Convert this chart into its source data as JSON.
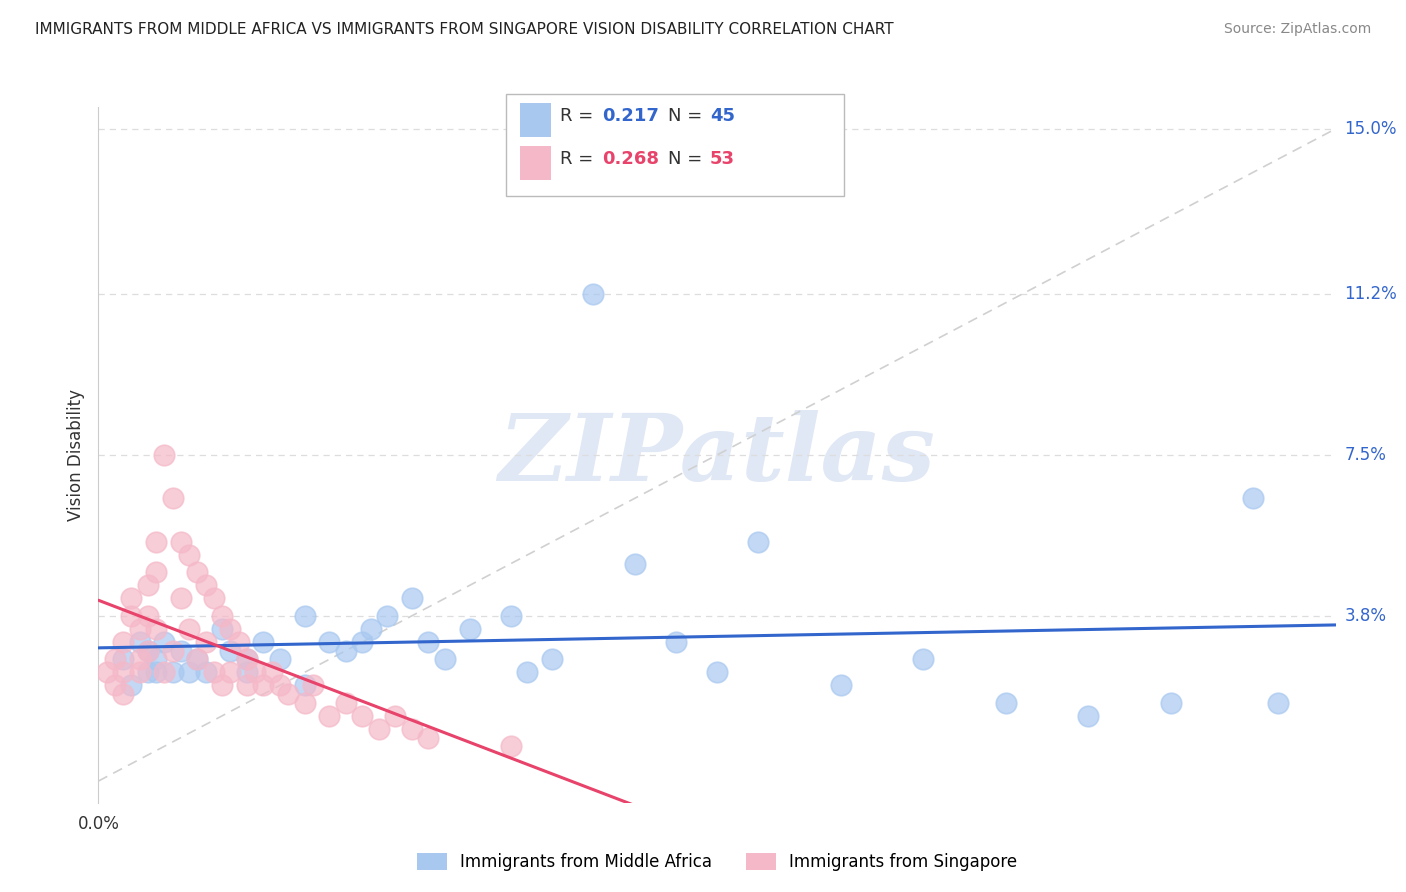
{
  "title": "IMMIGRANTS FROM MIDDLE AFRICA VS IMMIGRANTS FROM SINGAPORE VISION DISABILITY CORRELATION CHART",
  "source": "Source: ZipAtlas.com",
  "ylabel": "Vision Disability",
  "xlim": [
    0.0,
    0.15
  ],
  "ylim": [
    -0.01,
    0.155
  ],
  "ytick_labels": [
    "3.8%",
    "7.5%",
    "11.2%",
    "15.0%"
  ],
  "ytick_values": [
    0.038,
    0.075,
    0.112,
    0.15
  ],
  "blue_color": "#A8C8F0",
  "pink_color": "#F5B8C8",
  "blue_line_color": "#3366CC",
  "pink_line_color": "#E8436A",
  "diag_line_color": "#D0D0D0",
  "grid_color": "#DDDDDD",
  "watermark_color": "#E0E8F5",
  "blue_scatter_x": [
    0.003,
    0.004,
    0.005,
    0.006,
    0.006,
    0.007,
    0.007,
    0.008,
    0.009,
    0.01,
    0.011,
    0.012,
    0.013,
    0.015,
    0.016,
    0.018,
    0.02,
    0.022,
    0.025,
    0.028,
    0.03,
    0.032,
    0.033,
    0.035,
    0.038,
    0.04,
    0.042,
    0.045,
    0.05,
    0.052,
    0.055,
    0.06,
    0.065,
    0.07,
    0.075,
    0.08,
    0.09,
    0.1,
    0.11,
    0.12,
    0.13,
    0.14,
    0.143,
    0.025,
    0.018
  ],
  "blue_scatter_y": [
    0.028,
    0.022,
    0.032,
    0.025,
    0.03,
    0.028,
    0.025,
    0.032,
    0.025,
    0.03,
    0.025,
    0.028,
    0.025,
    0.035,
    0.03,
    0.028,
    0.032,
    0.028,
    0.038,
    0.032,
    0.03,
    0.032,
    0.035,
    0.038,
    0.042,
    0.032,
    0.028,
    0.035,
    0.038,
    0.025,
    0.028,
    0.112,
    0.05,
    0.032,
    0.025,
    0.055,
    0.022,
    0.028,
    0.018,
    0.015,
    0.018,
    0.065,
    0.018,
    0.022,
    0.025
  ],
  "pink_scatter_x": [
    0.001,
    0.002,
    0.002,
    0.003,
    0.003,
    0.003,
    0.004,
    0.004,
    0.005,
    0.005,
    0.005,
    0.006,
    0.006,
    0.006,
    0.007,
    0.007,
    0.007,
    0.008,
    0.008,
    0.009,
    0.009,
    0.01,
    0.01,
    0.011,
    0.011,
    0.012,
    0.012,
    0.013,
    0.013,
    0.014,
    0.014,
    0.015,
    0.015,
    0.016,
    0.016,
    0.017,
    0.018,
    0.018,
    0.019,
    0.02,
    0.021,
    0.022,
    0.023,
    0.025,
    0.026,
    0.028,
    0.03,
    0.032,
    0.034,
    0.036,
    0.038,
    0.04,
    0.05
  ],
  "pink_scatter_y": [
    0.025,
    0.028,
    0.022,
    0.032,
    0.025,
    0.02,
    0.042,
    0.038,
    0.025,
    0.035,
    0.028,
    0.045,
    0.038,
    0.03,
    0.055,
    0.048,
    0.035,
    0.075,
    0.025,
    0.065,
    0.03,
    0.055,
    0.042,
    0.052,
    0.035,
    0.048,
    0.028,
    0.045,
    0.032,
    0.042,
    0.025,
    0.038,
    0.022,
    0.035,
    0.025,
    0.032,
    0.028,
    0.022,
    0.025,
    0.022,
    0.025,
    0.022,
    0.02,
    0.018,
    0.022,
    0.015,
    0.018,
    0.015,
    0.012,
    0.015,
    0.012,
    0.01,
    0.008
  ]
}
